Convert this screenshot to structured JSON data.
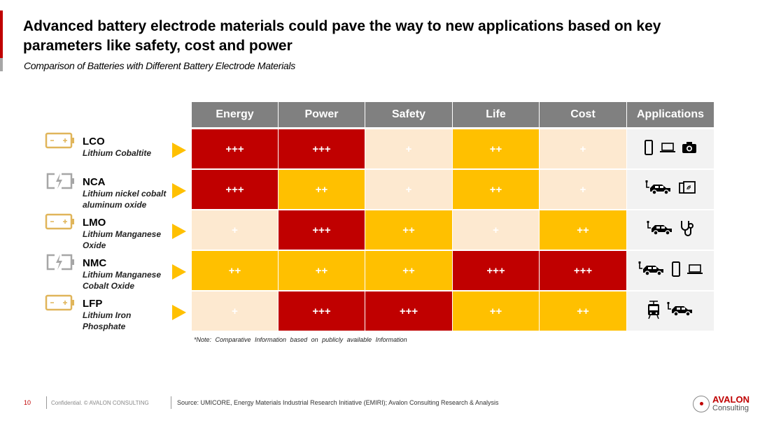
{
  "header": {
    "title": "Advanced battery electrode materials could pave the way to new applications based on key parameters like safety, cost and power",
    "subtitle": "Comparison of Batteries with Different Battery Electrode Materials"
  },
  "colors": {
    "high": "#C00000",
    "medium": "#FFC000",
    "low": "#FDE9D0",
    "header": "#808080",
    "apps_bg": "#F2F2F2"
  },
  "columns": [
    "Energy",
    "Power",
    "Safety",
    "Life",
    "Cost",
    "Applications"
  ],
  "rows": [
    {
      "code": "LCO",
      "name": "Lithium Cobaltite",
      "battery_icon": "battery-icon",
      "ratings": [
        "+++",
        "+++",
        "+",
        "++",
        "+"
      ],
      "apps": [
        "smartphone-icon",
        "laptop-icon",
        "camera-icon"
      ]
    },
    {
      "code": "NCA",
      "name": "Lithium nickel cobalt aluminum oxide",
      "battery_icon": "battery-charging-icon",
      "ratings": [
        "+++",
        "++",
        "+",
        "++",
        "+"
      ],
      "apps": [
        "electric-car-icon",
        "tablet-icon"
      ]
    },
    {
      "code": "LMO",
      "name": "Lithium Manganese Oxide",
      "battery_icon": "battery-icon",
      "ratings": [
        "+",
        "+++",
        "++",
        "+",
        "++"
      ],
      "apps": [
        "electric-car-icon",
        "stethoscope-icon"
      ]
    },
    {
      "code": "NMC",
      "name": "Lithium Manganese Cobalt Oxide",
      "battery_icon": "battery-charging-icon",
      "ratings": [
        "++",
        "++",
        "++",
        "+++",
        "+++"
      ],
      "apps": [
        "electric-car-icon",
        "smartphone-icon",
        "laptop-icon"
      ]
    },
    {
      "code": "LFP",
      "name": "Lithium Iron Phosphate",
      "battery_icon": "battery-icon",
      "ratings": [
        "+",
        "+++",
        "+++",
        "++",
        "++"
      ],
      "apps": [
        "train-icon",
        "electric-car-icon"
      ]
    }
  ],
  "note": "*Note: Comparative Information based on publicly available Information",
  "footer": {
    "page": "10",
    "confidential": "Confidential. © AVALON CONSULTING",
    "source": "Source: UMICORE, Energy Materials Industrial Research Initiative (EMIRI); Avalon Consulting Research & Analysis"
  },
  "logo": {
    "name": "AVALON",
    "sub": "Consulting"
  }
}
